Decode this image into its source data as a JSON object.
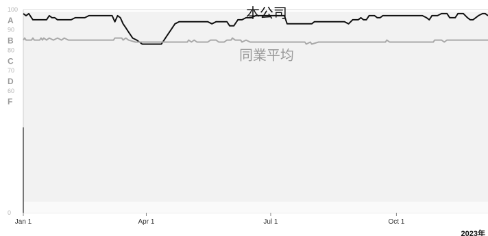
{
  "chart_data": {
    "type": "line",
    "title": "",
    "year_label": "2023年",
    "ylim": [
      0,
      100
    ],
    "y_ticks": [
      0,
      60,
      70,
      80,
      90,
      100
    ],
    "grade_ticks": [
      {
        "label": "A",
        "value": 95
      },
      {
        "label": "B",
        "value": 85
      },
      {
        "label": "C",
        "value": 75
      },
      {
        "label": "D",
        "value": 65
      },
      {
        "label": "F",
        "value": 55
      }
    ],
    "x_ticks": [
      {
        "label": "Jan 1",
        "day": 0
      },
      {
        "label": "Apr 1",
        "day": 90
      },
      {
        "label": "Jul 1",
        "day": 181
      },
      {
        "label": "Oct 1",
        "day": 273
      }
    ],
    "x_domain_days": [
      0,
      340
    ],
    "series": [
      {
        "name": "本公司",
        "color": "#111111",
        "points": [
          [
            0,
            98
          ],
          [
            2,
            97
          ],
          [
            4,
            98
          ],
          [
            5,
            97
          ],
          [
            7,
            95
          ],
          [
            9,
            95
          ],
          [
            13,
            95
          ],
          [
            17,
            95
          ],
          [
            19,
            97
          ],
          [
            21,
            96
          ],
          [
            23,
            96
          ],
          [
            25,
            95
          ],
          [
            35,
            95
          ],
          [
            38,
            96
          ],
          [
            45,
            96
          ],
          [
            48,
            97
          ],
          [
            65,
            97
          ],
          [
            67,
            94
          ],
          [
            69,
            97
          ],
          [
            71,
            96
          ],
          [
            73,
            93
          ],
          [
            75,
            91
          ],
          [
            77,
            89
          ],
          [
            80,
            86
          ],
          [
            83,
            85
          ],
          [
            85,
            84
          ],
          [
            87,
            83
          ],
          [
            101,
            83
          ],
          [
            103,
            85
          ],
          [
            106,
            88
          ],
          [
            108,
            90
          ],
          [
            111,
            93
          ],
          [
            114,
            94
          ],
          [
            125,
            94
          ],
          [
            135,
            94
          ],
          [
            138,
            93
          ],
          [
            141,
            94
          ],
          [
            149,
            94
          ],
          [
            151,
            92
          ],
          [
            154,
            92
          ],
          [
            157,
            95
          ],
          [
            160,
            95
          ],
          [
            163,
            96
          ],
          [
            167,
            96
          ],
          [
            170,
            97
          ],
          [
            182,
            97
          ],
          [
            188,
            97
          ],
          [
            191,
            97
          ],
          [
            193,
            93
          ],
          [
            204,
            93
          ],
          [
            211,
            93
          ],
          [
            213,
            94
          ],
          [
            225,
            94
          ],
          [
            235,
            94
          ],
          [
            238,
            93
          ],
          [
            241,
            95
          ],
          [
            245,
            95
          ],
          [
            247,
            96
          ],
          [
            249,
            95
          ],
          [
            251,
            95
          ],
          [
            253,
            97
          ],
          [
            257,
            97
          ],
          [
            259,
            96
          ],
          [
            261,
            96
          ],
          [
            263,
            97
          ],
          [
            274,
            97
          ],
          [
            288,
            97
          ],
          [
            292,
            97
          ],
          [
            295,
            96
          ],
          [
            297,
            95
          ],
          [
            299,
            97
          ],
          [
            303,
            97
          ],
          [
            306,
            98
          ],
          [
            310,
            98
          ],
          [
            312,
            96
          ],
          [
            314,
            96
          ],
          [
            316,
            96
          ],
          [
            318,
            98
          ],
          [
            322,
            98
          ],
          [
            325,
            96
          ],
          [
            327,
            95
          ],
          [
            329,
            95
          ],
          [
            331,
            96
          ],
          [
            333,
            97
          ],
          [
            336,
            98
          ],
          [
            338,
            98
          ],
          [
            340,
            97
          ]
        ]
      },
      {
        "name": "同業平均",
        "color": "#a8a8a8",
        "points": [
          [
            0,
            85
          ],
          [
            1,
            86
          ],
          [
            2,
            85
          ],
          [
            6,
            85
          ],
          [
            7,
            86
          ],
          [
            8,
            85
          ],
          [
            12,
            85
          ],
          [
            13,
            86
          ],
          [
            14,
            85
          ],
          [
            15,
            86
          ],
          [
            17,
            85
          ],
          [
            19,
            86
          ],
          [
            22,
            85
          ],
          [
            25,
            86
          ],
          [
            28,
            85
          ],
          [
            30,
            86
          ],
          [
            33,
            85
          ],
          [
            66,
            85
          ],
          [
            67,
            86
          ],
          [
            72,
            86
          ],
          [
            73,
            85
          ],
          [
            75,
            86
          ],
          [
            77,
            85
          ],
          [
            82,
            84
          ],
          [
            120,
            84
          ],
          [
            121,
            85
          ],
          [
            123,
            84
          ],
          [
            125,
            85
          ],
          [
            127,
            84
          ],
          [
            135,
            84
          ],
          [
            137,
            85
          ],
          [
            141,
            85
          ],
          [
            143,
            84
          ],
          [
            147,
            84
          ],
          [
            149,
            85
          ],
          [
            152,
            85
          ],
          [
            153,
            86
          ],
          [
            155,
            85
          ],
          [
            159,
            85
          ],
          [
            160,
            84
          ],
          [
            163,
            85
          ],
          [
            166,
            84
          ],
          [
            206,
            84
          ],
          [
            207,
            83
          ],
          [
            210,
            84
          ],
          [
            211,
            83
          ],
          [
            216,
            84
          ],
          [
            265,
            84
          ],
          [
            266,
            85
          ],
          [
            268,
            84
          ],
          [
            300,
            84
          ],
          [
            301,
            85
          ],
          [
            306,
            85
          ],
          [
            308,
            84
          ],
          [
            310,
            85
          ],
          [
            340,
            85
          ]
        ]
      }
    ],
    "series_labels": [
      {
        "text": "本公司",
        "x_day": 178,
        "y": 98
      },
      {
        "text": "同業平均",
        "x_day": 178,
        "y": 80
      }
    ],
    "grid": true,
    "legend": "inline"
  }
}
